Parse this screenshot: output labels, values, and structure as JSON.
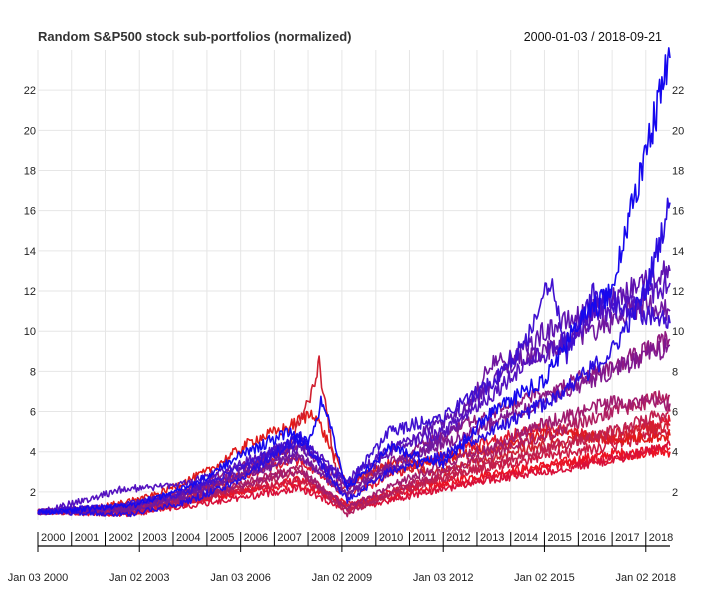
{
  "chart_data": {
    "type": "line",
    "title": "Random S&P500 stock sub-portfolios (normalized)",
    "date_range": "2000-01-03 / 2018-09-21",
    "xlabel": "",
    "ylabel": "",
    "x_range": [
      "2000-01-03",
      "2018-09-21"
    ],
    "ylim": [
      0.6,
      24
    ],
    "y_ticks": [
      2,
      4,
      6,
      8,
      10,
      12,
      14,
      16,
      18,
      20,
      22
    ],
    "y_tick_labels": [
      "2",
      "4",
      "6",
      "8",
      "10",
      "12",
      "14",
      "16",
      "18",
      "20",
      "22"
    ],
    "x_year_ticks": [
      {
        "date": "2000-01-03",
        "label": "2000"
      },
      {
        "date": "2001-01-02",
        "label": "2001"
      },
      {
        "date": "2002-01-02",
        "label": "2002"
      },
      {
        "date": "2003-01-02",
        "label": "2003"
      },
      {
        "date": "2004-01-02",
        "label": "2004"
      },
      {
        "date": "2005-01-03",
        "label": "2005"
      },
      {
        "date": "2006-01-03",
        "label": "2006"
      },
      {
        "date": "2007-01-03",
        "label": "2007"
      },
      {
        "date": "2008-01-02",
        "label": "2008"
      },
      {
        "date": "2009-01-02",
        "label": "2009"
      },
      {
        "date": "2010-01-04",
        "label": "2010"
      },
      {
        "date": "2011-01-03",
        "label": "2011"
      },
      {
        "date": "2012-01-03",
        "label": "2012"
      },
      {
        "date": "2013-01-02",
        "label": "2013"
      },
      {
        "date": "2014-01-02",
        "label": "2014"
      },
      {
        "date": "2015-01-02",
        "label": "2015"
      },
      {
        "date": "2016-01-04",
        "label": "2016"
      },
      {
        "date": "2017-01-03",
        "label": "2017"
      },
      {
        "date": "2018-01-02",
        "label": "2018"
      }
    ],
    "x_date_ticks": [
      {
        "date": "2000-01-03",
        "label": "Jan 03 2000"
      },
      {
        "date": "2003-01-02",
        "label": "Jan 02 2003"
      },
      {
        "date": "2006-01-03",
        "label": "Jan 03 2006"
      },
      {
        "date": "2009-01-02",
        "label": "Jan 02 2009"
      },
      {
        "date": "2012-01-03",
        "label": "Jan 03 2012"
      },
      {
        "date": "2015-01-02",
        "label": "Jan 02 2015"
      },
      {
        "date": "2018-01-02",
        "label": "Jan 02 2018"
      }
    ],
    "grid": true,
    "legend": "none",
    "color_scale": [
      "#ff0000",
      "#0000ff"
    ],
    "series": [
      {
        "color": "#ee1020",
        "x": [
          "2000-01-03",
          "2002-10-01",
          "2004-06-01",
          "2006-01-03",
          "2007-10-01",
          "2009-03-02",
          "2011-01-03",
          "2013-01-02",
          "2015-01-02",
          "2017-01-03",
          "2018-09-21"
        ],
        "values": [
          1.0,
          0.9,
          1.4,
          2.0,
          2.6,
          1.4,
          2.2,
          2.8,
          3.3,
          3.9,
          4.0
        ]
      },
      {
        "color": "#e81428",
        "x": [
          "2000-01-03",
          "2002-10-01",
          "2004-06-01",
          "2006-01-03",
          "2007-10-01",
          "2009-03-02",
          "2011-01-03",
          "2013-01-02",
          "2015-01-02",
          "2017-01-03",
          "2018-09-21"
        ],
        "values": [
          1.0,
          1.1,
          1.5,
          2.0,
          2.4,
          1.2,
          2.0,
          2.6,
          3.2,
          3.7,
          4.2
        ]
      },
      {
        "color": "#e0182f",
        "x": [
          "2000-01-03",
          "2002-10-01",
          "2004-06-01",
          "2006-01-03",
          "2007-10-01",
          "2009-03-02",
          "2011-01-03",
          "2013-01-02",
          "2015-01-02",
          "2017-01-03",
          "2018-09-21"
        ],
        "values": [
          1.0,
          1.3,
          2.0,
          2.8,
          3.6,
          1.8,
          3.2,
          4.4,
          5.2,
          4.6,
          5.5
        ]
      },
      {
        "color": "#d8103a",
        "x": [
          "2000-01-03",
          "2002-10-01",
          "2004-06-01",
          "2006-01-03",
          "2007-10-01",
          "2009-03-02",
          "2011-01-03",
          "2013-01-02",
          "2015-01-02",
          "2017-01-03",
          "2018-09-21"
        ],
        "values": [
          1.0,
          0.9,
          1.3,
          1.7,
          2.2,
          1.1,
          1.8,
          2.5,
          3.0,
          3.6,
          4.3
        ]
      },
      {
        "color": "#cc1a44",
        "x": [
          "2000-01-03",
          "2002-10-01",
          "2004-06-01",
          "2006-01-03",
          "2007-10-01",
          "2009-03-02",
          "2011-01-03",
          "2013-01-02",
          "2015-01-02",
          "2017-01-03",
          "2018-09-21"
        ],
        "values": [
          1.0,
          1.2,
          1.6,
          2.1,
          2.6,
          1.3,
          2.3,
          3.1,
          3.8,
          4.3,
          5.1
        ]
      },
      {
        "color": "#e01a1a",
        "x": [
          "2000-01-03",
          "2001-10-01",
          "2003-06-02",
          "2005-01-03",
          "2006-06-01",
          "2007-06-01",
          "2008-03-03",
          "2009-03-02",
          "2010-06-01",
          "2012-01-03",
          "2014-01-02",
          "2015-06-01",
          "2017-01-03",
          "2018-09-21"
        ],
        "values": [
          1.0,
          1.2,
          1.8,
          3.0,
          4.6,
          5.2,
          6.0,
          2.4,
          3.4,
          3.6,
          4.4,
          5.0,
          4.6,
          4.8
        ]
      },
      {
        "color": "#d02030",
        "x": [
          "2000-01-03",
          "2002-10-01",
          "2004-06-01",
          "2006-01-03",
          "2007-06-01",
          "2008-03-03",
          "2008-05-01",
          "2008-12-01",
          "2010-01-04",
          "2012-01-03",
          "2014-01-02",
          "2016-01-04",
          "2018-09-21"
        ],
        "values": [
          1.0,
          1.2,
          1.8,
          2.8,
          4.2,
          7.2,
          8.4,
          2.0,
          3.2,
          3.0,
          4.0,
          4.6,
          5.3
        ]
      },
      {
        "color": "#c0204f",
        "x": [
          "2000-01-03",
          "2002-10-01",
          "2004-06-01",
          "2006-01-03",
          "2007-10-01",
          "2009-03-02",
          "2011-01-03",
          "2013-01-02",
          "2015-01-02",
          "2017-01-03",
          "2018-09-21"
        ],
        "values": [
          1.0,
          1.0,
          1.5,
          2.2,
          3.0,
          1.1,
          2.2,
          3.2,
          4.1,
          5.0,
          6.0
        ]
      },
      {
        "color": "#b01e60",
        "x": [
          "2000-01-03",
          "2002-10-01",
          "2004-06-01",
          "2006-01-03",
          "2007-10-01",
          "2009-03-02",
          "2011-01-03",
          "2013-01-02",
          "2015-01-02",
          "2017-01-03",
          "2018-09-21"
        ],
        "values": [
          1.0,
          1.1,
          1.7,
          2.4,
          3.2,
          0.9,
          2.4,
          3.6,
          4.8,
          6.0,
          6.8
        ]
      },
      {
        "color": "#a01c70",
        "x": [
          "2000-01-03",
          "2002-10-01",
          "2004-06-01",
          "2006-01-03",
          "2007-10-01",
          "2009-03-02",
          "2011-01-03",
          "2013-01-02",
          "2015-01-02",
          "2017-01-03",
          "2018-09-21"
        ],
        "values": [
          1.0,
          1.1,
          1.6,
          2.3,
          3.1,
          1.2,
          2.7,
          4.0,
          5.4,
          6.5,
          6.4
        ]
      },
      {
        "color": "#901a80",
        "x": [
          "2000-01-03",
          "2002-10-01",
          "2004-06-01",
          "2006-01-03",
          "2007-10-01",
          "2009-03-02",
          "2011-01-03",
          "2013-01-02",
          "2015-01-02",
          "2017-01-03",
          "2018-09-21"
        ],
        "values": [
          1.0,
          1.3,
          2.1,
          3.2,
          4.4,
          2.2,
          4.0,
          5.6,
          7.0,
          8.2,
          9.6
        ]
      },
      {
        "color": "#801890",
        "x": [
          "2000-01-03",
          "2002-10-01",
          "2004-06-01",
          "2006-01-03",
          "2007-10-01",
          "2009-03-02",
          "2011-01-03",
          "2013-01-02",
          "2015-01-02",
          "2017-01-03",
          "2018-09-21"
        ],
        "values": [
          1.0,
          1.2,
          1.9,
          2.8,
          3.8,
          2.0,
          3.8,
          5.0,
          6.6,
          8.0,
          9.3
        ]
      },
      {
        "color": "#7018a0",
        "x": [
          "2000-01-03",
          "2002-10-01",
          "2004-06-01",
          "2006-01-03",
          "2007-10-01",
          "2009-03-02",
          "2011-01-03",
          "2012-06-01",
          "2013-06-03",
          "2015-01-02",
          "2016-06-01",
          "2018-01-02",
          "2018-09-21"
        ],
        "values": [
          1.0,
          1.1,
          1.8,
          2.8,
          3.8,
          1.8,
          3.6,
          5.2,
          8.4,
          9.0,
          10.0,
          11.4,
          11.0
        ]
      },
      {
        "color": "#6014b0",
        "x": [
          "2000-01-03",
          "2002-10-01",
          "2004-06-01",
          "2006-01-03",
          "2007-10-01",
          "2009-03-02",
          "2011-01-03",
          "2012-06-01",
          "2013-06-03",
          "2015-01-02",
          "2016-06-01",
          "2018-01-02",
          "2018-09-21"
        ],
        "values": [
          1.0,
          1.3,
          2.0,
          3.0,
          4.2,
          2.4,
          4.6,
          5.8,
          7.4,
          10.0,
          11.0,
          12.6,
          13.0
        ]
      },
      {
        "color": "#5512c0",
        "x": [
          "2000-01-03",
          "2001-06-01",
          "2002-06-03",
          "2004-06-01",
          "2006-01-03",
          "2007-10-01",
          "2009-03-02",
          "2010-06-01",
          "2012-01-03",
          "2013-06-03",
          "2014-06-02",
          "2015-06-01",
          "2016-06-01",
          "2018-09-21"
        ],
        "values": [
          1.0,
          1.6,
          2.1,
          2.4,
          3.4,
          4.6,
          2.6,
          4.2,
          5.0,
          6.8,
          8.4,
          9.2,
          10.6,
          12.4
        ]
      },
      {
        "color": "#4010d0",
        "x": [
          "2000-01-03",
          "2002-10-01",
          "2004-06-01",
          "2006-01-03",
          "2007-10-01",
          "2009-03-02",
          "2010-06-01",
          "2012-01-03",
          "2013-06-03",
          "2014-06-02",
          "2015-03-02",
          "2015-09-01",
          "2016-06-01",
          "2017-06-01",
          "2018-09-21"
        ],
        "values": [
          1.0,
          1.4,
          2.0,
          3.2,
          4.6,
          2.4,
          5.0,
          5.8,
          7.4,
          9.4,
          12.6,
          8.8,
          11.8,
          11.2,
          10.4
        ]
      },
      {
        "color": "#2a0ce0",
        "x": [
          "2000-01-03",
          "2002-10-01",
          "2004-06-01",
          "2006-01-03",
          "2007-10-01",
          "2009-03-02",
          "2010-06-01",
          "2012-01-03",
          "2013-06-03",
          "2015-01-02",
          "2016-01-04",
          "2017-01-03",
          "2018-01-02",
          "2018-09-21"
        ],
        "values": [
          1.0,
          0.9,
          1.5,
          2.6,
          4.8,
          1.6,
          3.0,
          3.8,
          5.0,
          6.4,
          7.6,
          9.0,
          12.0,
          16.4
        ]
      },
      {
        "color": "#1608ee",
        "x": [
          "2000-01-03",
          "2002-10-01",
          "2004-06-01",
          "2006-01-03",
          "2007-06-01",
          "2008-01-02",
          "2008-06-02",
          "2009-03-02",
          "2010-06-01",
          "2012-01-03",
          "2013-06-03",
          "2015-01-02",
          "2016-01-04",
          "2017-01-03",
          "2017-06-01",
          "2018-01-02",
          "2018-06-01",
          "2018-09-21"
        ],
        "values": [
          1.0,
          1.3,
          2.2,
          3.8,
          5.0,
          4.4,
          6.6,
          2.2,
          4.2,
          3.4,
          6.0,
          7.6,
          10.4,
          12.0,
          15.0,
          19.0,
          21.6,
          23.6
        ]
      }
    ]
  }
}
